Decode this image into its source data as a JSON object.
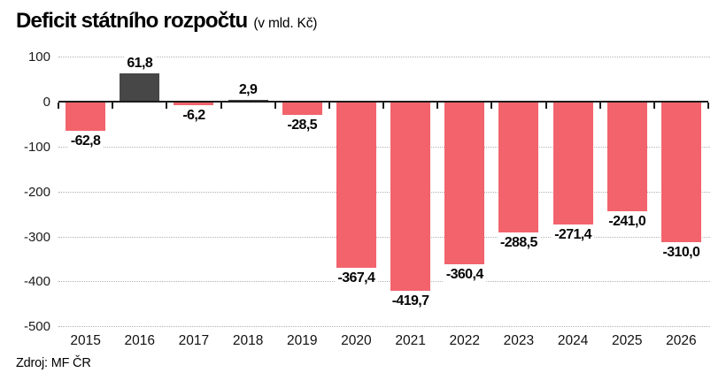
{
  "header": {
    "title": "Deficit státního rozpočtu",
    "subtitle": "(v mld. Kč)"
  },
  "source": "Zdroj: MF ČR",
  "chart_data": {
    "type": "bar",
    "title": "Deficit státního rozpočtu (v mld. Kč)",
    "xlabel": "",
    "ylabel": "",
    "categories": [
      "2015",
      "2016",
      "2017",
      "2018",
      "2019",
      "2020",
      "2021",
      "2022",
      "2023",
      "2024",
      "2025",
      "2026"
    ],
    "values": [
      -62.8,
      61.8,
      -6.2,
      2.9,
      -28.5,
      -367.4,
      -419.7,
      -360.4,
      -288.5,
      -271.4,
      -241.0,
      -310.0
    ],
    "value_labels": [
      "-62,8",
      "61,8",
      "-6,2",
      "2,9",
      "-28,5",
      "-367,4",
      "-419,7",
      "-360,4",
      "-288,5",
      "-271,4",
      "-241,0",
      "-310,0"
    ],
    "y_ticks": [
      100,
      0,
      -100,
      -200,
      -300,
      -400,
      -500
    ],
    "y_tick_labels": [
      "100",
      "0",
      "-100",
      "-200",
      "-300",
      "-400",
      "-500"
    ],
    "ylim": [
      -500,
      100
    ],
    "grid": "horizontal-dotted",
    "legend": "none",
    "colors": {
      "negative_bar": "#f2636c",
      "positive_bar": "#474747",
      "gridline": "#b2b2b2",
      "axis": "#1c1c1c",
      "text": "#000000"
    }
  }
}
